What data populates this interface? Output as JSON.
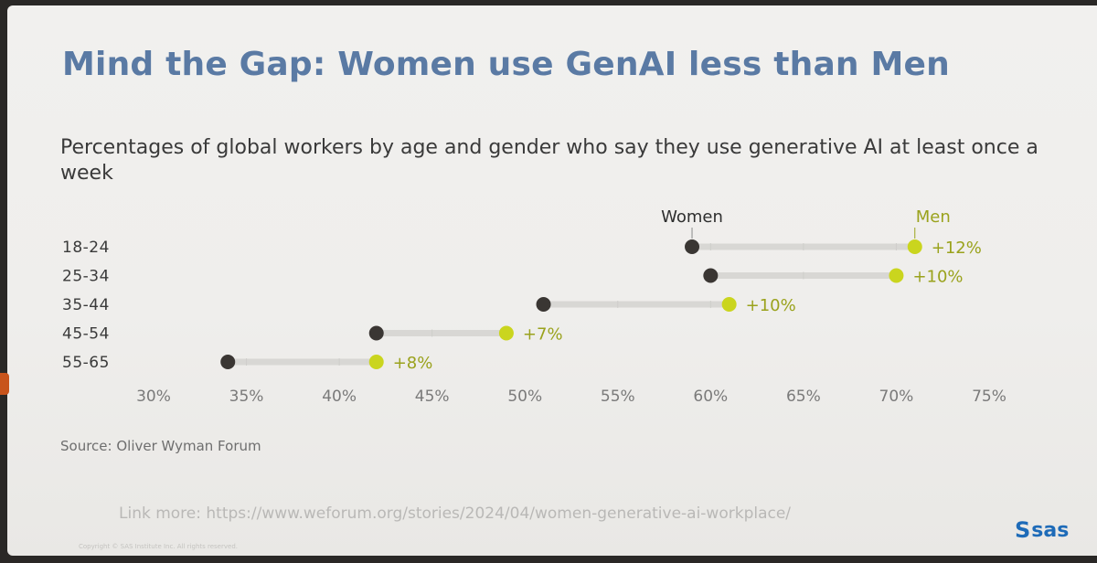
{
  "slide": {
    "title": "Mind the Gap: Women use GenAI less than Men",
    "source": "Source: Oliver Wyman Forum",
    "link": "Link more: https://www.weforum.org/stories/2024/04/women-generative-ai-workplace/",
    "copyright": "Copyright © SAS Institute Inc. All rights reserved.",
    "logo": "sas",
    "logo_mark": "S"
  },
  "colors": {
    "title": "#5a7aa4",
    "women": "#3a3633",
    "men": "#cad51e",
    "men_label": "#9aa21c",
    "gap_line": "#d8d7d4"
  },
  "chart_data": {
    "type": "dumbbell",
    "title": "Percentages of global workers by age and gender who say they use generative AI at least once a week",
    "xlabel": "",
    "ylabel": "",
    "xlim": [
      30,
      75
    ],
    "x_ticks": [
      "30%",
      "35%",
      "40%",
      "45%",
      "50%",
      "55%",
      "60%",
      "65%",
      "70%",
      "75%"
    ],
    "x_tick_values": [
      30,
      35,
      40,
      45,
      50,
      55,
      60,
      65,
      70,
      75
    ],
    "categories": [
      "18-24",
      "25-34",
      "35-44",
      "45-54",
      "55-65"
    ],
    "series": [
      {
        "name": "Women",
        "values": [
          59,
          60,
          51,
          42,
          34
        ]
      },
      {
        "name": "Men",
        "values": [
          71,
          70,
          61,
          49,
          42
        ]
      }
    ],
    "gap_labels": [
      "+12%",
      "+10%",
      "+10%",
      "+7%",
      "+8%"
    ],
    "legend": {
      "women_label": "Women",
      "men_label": "Men",
      "placement": "top"
    }
  }
}
